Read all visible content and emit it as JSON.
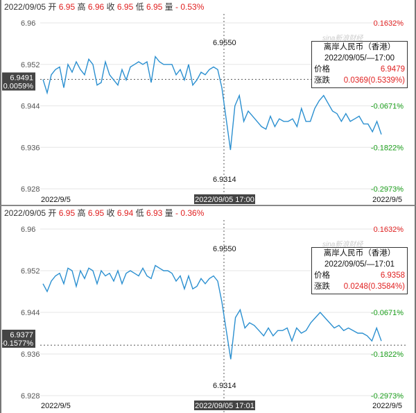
{
  "colors": {
    "line": "#2a8fd0",
    "up": "#e02020",
    "down": "#1a9e1a",
    "grid": "#e6e6e6"
  },
  "panels": [
    {
      "header": {
        "date": "2022/09/05",
        "open_label": "开",
        "open": "6.95",
        "high_label": "高",
        "high": "6.96",
        "close_label": "收",
        "close": "6.95",
        "low_label": "低",
        "low": "6.95",
        "volume_label": "量",
        "change": "- 0.53%"
      },
      "chart_data": {
        "type": "line",
        "ylim": [
          6.928,
          6.96
        ],
        "yticks": [
          "6.96",
          "6.952",
          "6.944",
          "6.936",
          "6.928"
        ],
        "right_ticks": [
          {
            "v": 6.96,
            "t": "0.1632%",
            "c": "up"
          },
          {
            "v": 6.944,
            "t": "-0.0671%",
            "c": "down"
          },
          {
            "v": 6.936,
            "t": "-0.1822%",
            "c": "down"
          },
          {
            "v": 6.928,
            "t": "-0.2973%",
            "c": "down"
          }
        ],
        "x_start": "2022/9/5",
        "x_end": "2022/9/5",
        "crosshair_time": "2022/09/05 17:00",
        "high_mark": "6.9550",
        "low_mark": "6.9314",
        "current_price": "6.9491",
        "current_pct": "0.0059%",
        "current_value": 6.9491,
        "values": [
          6.9491,
          6.9465,
          6.95,
          6.951,
          6.9515,
          6.9475,
          6.952,
          6.9505,
          6.9525,
          6.951,
          6.95,
          6.953,
          6.952,
          6.948,
          6.9485,
          6.9525,
          6.95,
          6.949,
          6.948,
          6.951,
          6.949,
          6.9515,
          6.952,
          6.9525,
          6.952,
          6.9525,
          6.9485,
          6.9535,
          6.9525,
          6.952,
          6.952,
          6.952,
          6.95,
          6.951,
          6.949,
          6.952,
          6.948,
          6.949,
          6.9505,
          6.95,
          6.951,
          6.9515,
          6.951,
          6.9475,
          6.9355,
          6.944,
          6.946,
          6.941,
          6.943,
          6.942,
          6.941,
          6.94,
          6.9395,
          6.942,
          6.94,
          6.9415,
          6.941,
          6.941,
          6.9415,
          6.94,
          6.9435,
          6.941,
          6.941,
          6.9435,
          6.945,
          6.946,
          6.9445,
          6.943,
          6.9425,
          6.941,
          6.9425,
          6.941,
          6.9415,
          6.942,
          6.9405,
          6.9405,
          6.939,
          6.941,
          6.9385
        ]
      },
      "tooltip": {
        "title": "离岸人民币（香港）",
        "time": "2022/09/05/—17:00",
        "price_label": "价格",
        "price": "6.9479",
        "change_label": "涨跌",
        "change": "0.0369(0.5339%)"
      }
    },
    {
      "header": {
        "date": "2022/09/05",
        "open_label": "开",
        "open": "6.95",
        "high_label": "高",
        "high": "6.95",
        "close_label": "收",
        "close": "6.94",
        "low_label": "低",
        "low": "6.93",
        "volume_label": "量",
        "change": "- 0.36%"
      },
      "chart_data": {
        "type": "line",
        "ylim": [
          6.928,
          6.96
        ],
        "yticks": [
          "6.96",
          "6.952",
          "6.944",
          "6.936",
          "6.928"
        ],
        "right_ticks": [
          {
            "v": 6.96,
            "t": "0.1632%",
            "c": "up"
          },
          {
            "v": 6.944,
            "t": "-0.0671%",
            "c": "down"
          },
          {
            "v": 6.936,
            "t": "-0.1822%",
            "c": "down"
          },
          {
            "v": 6.928,
            "t": "-0.2973%",
            "c": "down"
          }
        ],
        "x_start": "2022/9/5",
        "x_end": "2022/9/5",
        "crosshair_time": "2022/09/05 17:01",
        "high_mark": "6.9550",
        "low_mark": "6.9314",
        "current_price": "6.9377",
        "current_pct": "-0.1577%",
        "current_value": 6.9377,
        "values": [
          6.9495,
          6.948,
          6.95,
          6.951,
          6.9515,
          6.9495,
          6.9525,
          6.952,
          6.949,
          6.952,
          6.9505,
          6.9525,
          6.952,
          6.9495,
          6.952,
          6.951,
          6.9515,
          6.95,
          6.952,
          6.9495,
          6.9515,
          6.952,
          6.9515,
          6.951,
          6.9525,
          6.951,
          6.9505,
          6.953,
          6.9525,
          6.952,
          6.952,
          6.9515,
          6.95,
          6.951,
          6.9485,
          6.951,
          6.9485,
          6.949,
          6.9505,
          6.9495,
          6.9505,
          6.951,
          6.95,
          6.946,
          6.935,
          6.943,
          6.9445,
          6.941,
          6.942,
          6.9415,
          6.9405,
          6.9395,
          6.941,
          6.9395,
          6.9405,
          6.9405,
          6.941,
          6.9385,
          6.941,
          6.94,
          6.9405,
          6.942,
          6.943,
          6.944,
          6.943,
          6.942,
          6.941,
          6.9415,
          6.9405,
          6.941,
          6.9405,
          6.94,
          6.94,
          6.9395,
          6.9385,
          6.941,
          6.9385
        ]
      },
      "tooltip": {
        "title": "离岸人民币（香港）",
        "time": "2022/09/05/—17:01",
        "price_label": "价格",
        "price": "6.9358",
        "change_label": "涨跌",
        "change": "0.0248(0.3584%)"
      }
    }
  ],
  "watermark": "sina新浪财经"
}
